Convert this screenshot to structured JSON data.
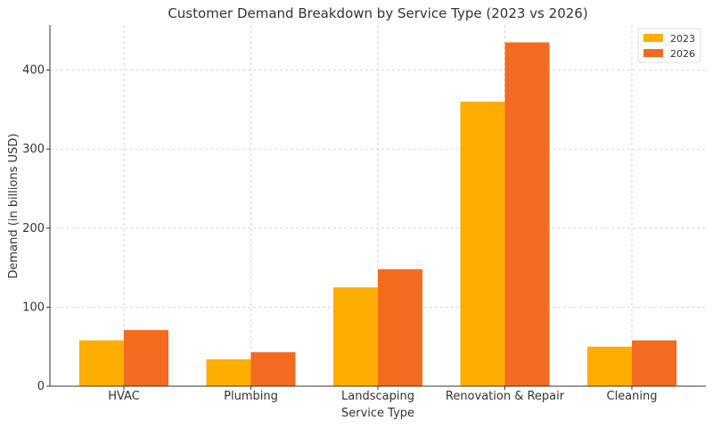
{
  "chart_data": {
    "type": "bar",
    "title": "Customer Demand Breakdown by Service Type (2023 vs 2026)",
    "xlabel": "Service Type",
    "ylabel": "Demand (in billions USD)",
    "categories": [
      "HVAC",
      "Plumbing",
      "Landscaping",
      "Renovation & Repair",
      "Cleaning"
    ],
    "series": [
      {
        "name": "2023",
        "color": "#FFAD00",
        "values": [
          58,
          34,
          125,
          360,
          50
        ]
      },
      {
        "name": "2026",
        "color": "#F26B21",
        "values": [
          71,
          43,
          148,
          435,
          58
        ]
      }
    ],
    "ylim": [
      0,
      457
    ],
    "yticks": [
      0,
      100,
      200,
      300,
      400
    ],
    "grid": true,
    "legend_position": "top-right"
  }
}
